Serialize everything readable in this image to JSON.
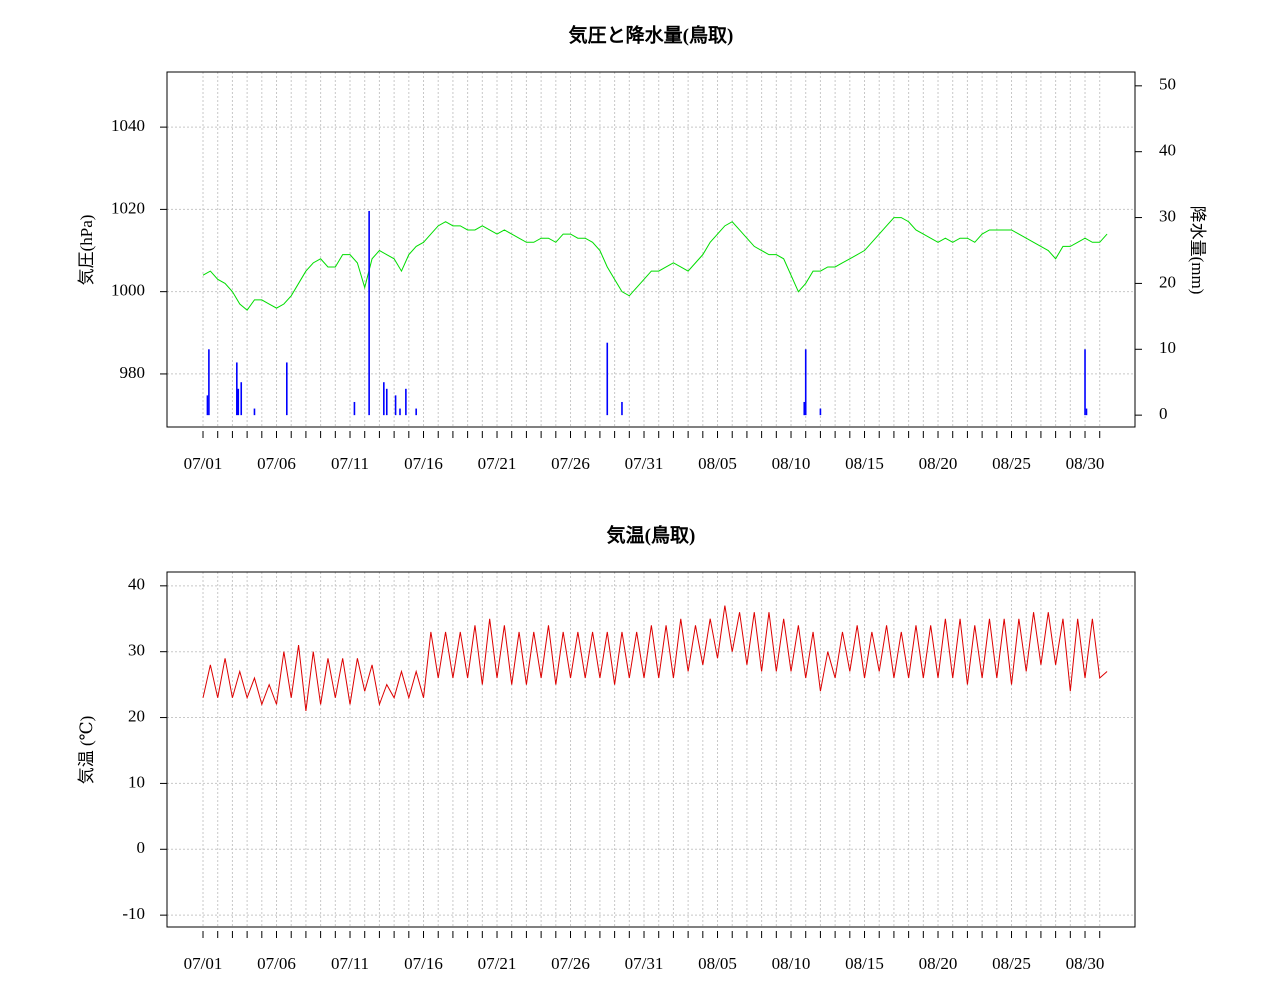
{
  "chart_data": [
    {
      "type": "line",
      "title": "気圧と降水量(鳥取)",
      "ylabel": "気圧(hPa)",
      "y2label": "降水量(mm)",
      "xlim": [
        -2.45,
        63.4
      ],
      "ylim": [
        967.1,
        1053.4
      ],
      "y2lim": [
        -1.8,
        52.1
      ],
      "grid": true,
      "yticks": [
        980,
        1000,
        1020,
        1040
      ],
      "y2ticks": [
        0,
        10,
        20,
        30,
        40,
        50
      ],
      "xticks": [
        {
          "value": 0,
          "label": "07/01"
        },
        {
          "value": 1,
          "label": null
        },
        {
          "value": 2,
          "label": null
        },
        {
          "value": 3,
          "label": null
        },
        {
          "value": 4,
          "label": null
        },
        {
          "value": 5,
          "label": "07/06"
        },
        {
          "value": 6,
          "label": null
        },
        {
          "value": 7,
          "label": null
        },
        {
          "value": 8,
          "label": null
        },
        {
          "value": 9,
          "label": null
        },
        {
          "value": 10,
          "label": "07/11"
        },
        {
          "value": 11,
          "label": null
        },
        {
          "value": 12,
          "label": null
        },
        {
          "value": 13,
          "label": null
        },
        {
          "value": 14,
          "label": null
        },
        {
          "value": 15,
          "label": "07/16"
        },
        {
          "value": 16,
          "label": null
        },
        {
          "value": 17,
          "label": null
        },
        {
          "value": 18,
          "label": null
        },
        {
          "value": 19,
          "label": null
        },
        {
          "value": 20,
          "label": "07/21"
        },
        {
          "value": 21,
          "label": null
        },
        {
          "value": 22,
          "label": null
        },
        {
          "value": 23,
          "label": null
        },
        {
          "value": 24,
          "label": null
        },
        {
          "value": 25,
          "label": "07/26"
        },
        {
          "value": 26,
          "label": null
        },
        {
          "value": 27,
          "label": null
        },
        {
          "value": 28,
          "label": null
        },
        {
          "value": 29,
          "label": null
        },
        {
          "value": 30,
          "label": "07/31"
        },
        {
          "value": 31,
          "label": null
        },
        {
          "value": 32,
          "label": null
        },
        {
          "value": 33,
          "label": null
        },
        {
          "value": 34,
          "label": null
        },
        {
          "value": 35,
          "label": "08/05"
        },
        {
          "value": 36,
          "label": null
        },
        {
          "value": 37,
          "label": null
        },
        {
          "value": 38,
          "label": null
        },
        {
          "value": 39,
          "label": null
        },
        {
          "value": 40,
          "label": "08/10"
        },
        {
          "value": 41,
          "label": null
        },
        {
          "value": 42,
          "label": null
        },
        {
          "value": 43,
          "label": null
        },
        {
          "value": 44,
          "label": null
        },
        {
          "value": 45,
          "label": "08/15"
        },
        {
          "value": 46,
          "label": null
        },
        {
          "value": 47,
          "label": null
        },
        {
          "value": 48,
          "label": null
        },
        {
          "value": 49,
          "label": null
        },
        {
          "value": 50,
          "label": "08/20"
        },
        {
          "value": 51,
          "label": null
        },
        {
          "value": 52,
          "label": null
        },
        {
          "value": 53,
          "label": null
        },
        {
          "value": 54,
          "label": null
        },
        {
          "value": 55,
          "label": "08/25"
        },
        {
          "value": 56,
          "label": null
        },
        {
          "value": 57,
          "label": null
        },
        {
          "value": 58,
          "label": null
        },
        {
          "value": 59,
          "label": null
        },
        {
          "value": 60,
          "label": "08/30"
        },
        {
          "value": 61,
          "label": null
        }
      ],
      "series": [
        {
          "color": "#00dd00",
          "axis": "y",
          "x": [
            0,
            0.5,
            1,
            1.5,
            2,
            2.5,
            3,
            3.5,
            4,
            4.5,
            5,
            5.5,
            6,
            6.5,
            7,
            7.5,
            8,
            8.5,
            9,
            9.5,
            10,
            10.5,
            11,
            11.5,
            12,
            12.5,
            13,
            13.5,
            14,
            14.5,
            15,
            15.5,
            16,
            16.5,
            17,
            17.5,
            18,
            18.5,
            19,
            19.5,
            20,
            20.5,
            21,
            21.5,
            22,
            22.5,
            23,
            23.5,
            24,
            24.5,
            25,
            25.5,
            26,
            26.5,
            27,
            27.5,
            28,
            28.5,
            29,
            29.5,
            30,
            30.5,
            31,
            31.5,
            32,
            32.5,
            33,
            33.5,
            34,
            34.5,
            35,
            35.5,
            36,
            36.5,
            37,
            37.5,
            38,
            38.5,
            39,
            39.5,
            40,
            40.5,
            41,
            41.5,
            42,
            42.5,
            43,
            43.5,
            44,
            44.5,
            45,
            45.5,
            46,
            46.5,
            47,
            47.5,
            48,
            48.5,
            49,
            49.5,
            50,
            50.5,
            51,
            51.5,
            52,
            52.5,
            53,
            53.5,
            54,
            54.5,
            55,
            55.5,
            56,
            56.5,
            57,
            57.5,
            58,
            58.5,
            59,
            59.5,
            60,
            60.5,
            61,
            61.5
          ],
          "values": [
            1004,
            1005,
            1003,
            1002,
            1000,
            997,
            995.5,
            998,
            998,
            997,
            996,
            997,
            999,
            1002,
            1005,
            1007,
            1008,
            1006,
            1006,
            1009,
            1009,
            1007,
            1001,
            1008,
            1010,
            1009,
            1008,
            1005,
            1009,
            1011,
            1012,
            1014,
            1016,
            1017,
            1016,
            1016,
            1015,
            1015,
            1016,
            1015,
            1014,
            1015,
            1014,
            1013,
            1012,
            1012,
            1013,
            1013,
            1012,
            1014,
            1014,
            1013,
            1013,
            1012,
            1010,
            1006,
            1003,
            1000,
            999,
            1001,
            1003,
            1005,
            1005,
            1006,
            1007,
            1006,
            1005,
            1007,
            1009,
            1012,
            1014,
            1016,
            1017,
            1015,
            1013,
            1011,
            1010,
            1009,
            1009,
            1008,
            1004,
            1000,
            1002,
            1005,
            1005,
            1006,
            1006,
            1007,
            1008,
            1009,
            1010,
            1012,
            1014,
            1016,
            1018,
            1018,
            1017,
            1015,
            1014,
            1013,
            1012,
            1013,
            1012,
            1013,
            1013,
            1012,
            1014,
            1015,
            1015,
            1015,
            1015,
            1014,
            1013,
            1012,
            1011,
            1010,
            1008,
            1011,
            1011,
            1012,
            1013,
            1012,
            1012,
            1014
          ]
        },
        {
          "color": "#0000ff",
          "axis": "y2",
          "type": "bar",
          "x": [
            0.3,
            0.4,
            2.3,
            2.4,
            2.6,
            3.5,
            5.7,
            10.3,
            11.3,
            12.3,
            12.5,
            13.1,
            13.4,
            13.8,
            14.5,
            27.5,
            28.5,
            40.9,
            41,
            42,
            60,
            60.1
          ],
          "values": [
            3,
            10,
            8,
            4,
            5,
            1,
            8,
            2,
            31,
            5,
            4,
            3,
            1,
            4,
            1,
            11,
            2,
            2,
            10,
            1,
            10,
            1
          ]
        }
      ]
    },
    {
      "type": "line",
      "title": "気温(鳥取)",
      "ylabel": "気温 (℃)",
      "xlim": [
        -2.45,
        63.4
      ],
      "ylim": [
        -11.8,
        42.1
      ],
      "grid": true,
      "yticks": [
        -10,
        0,
        10,
        20,
        30,
        40
      ],
      "xticks": [
        {
          "value": 0,
          "label": "07/01"
        },
        {
          "value": 1,
          "label": null
        },
        {
          "value": 2,
          "label": null
        },
        {
          "value": 3,
          "label": null
        },
        {
          "value": 4,
          "label": null
        },
        {
          "value": 5,
          "label": "07/06"
        },
        {
          "value": 6,
          "label": null
        },
        {
          "value": 7,
          "label": null
        },
        {
          "value": 8,
          "label": null
        },
        {
          "value": 9,
          "label": null
        },
        {
          "value": 10,
          "label": "07/11"
        },
        {
          "value": 11,
          "label": null
        },
        {
          "value": 12,
          "label": null
        },
        {
          "value": 13,
          "label": null
        },
        {
          "value": 14,
          "label": null
        },
        {
          "value": 15,
          "label": "07/16"
        },
        {
          "value": 16,
          "label": null
        },
        {
          "value": 17,
          "label": null
        },
        {
          "value": 18,
          "label": null
        },
        {
          "value": 19,
          "label": null
        },
        {
          "value": 20,
          "label": "07/21"
        },
        {
          "value": 21,
          "label": null
        },
        {
          "value": 22,
          "label": null
        },
        {
          "value": 23,
          "label": null
        },
        {
          "value": 24,
          "label": null
        },
        {
          "value": 25,
          "label": "07/26"
        },
        {
          "value": 26,
          "label": null
        },
        {
          "value": 27,
          "label": null
        },
        {
          "value": 28,
          "label": null
        },
        {
          "value": 29,
          "label": null
        },
        {
          "value": 30,
          "label": "07/31"
        },
        {
          "value": 31,
          "label": null
        },
        {
          "value": 32,
          "label": null
        },
        {
          "value": 33,
          "label": null
        },
        {
          "value": 34,
          "label": null
        },
        {
          "value": 35,
          "label": "08/05"
        },
        {
          "value": 36,
          "label": null
        },
        {
          "value": 37,
          "label": null
        },
        {
          "value": 38,
          "label": null
        },
        {
          "value": 39,
          "label": null
        },
        {
          "value": 40,
          "label": "08/10"
        },
        {
          "value": 41,
          "label": null
        },
        {
          "value": 42,
          "label": null
        },
        {
          "value": 43,
          "label": null
        },
        {
          "value": 44,
          "label": null
        },
        {
          "value": 45,
          "label": "08/15"
        },
        {
          "value": 46,
          "label": null
        },
        {
          "value": 47,
          "label": null
        },
        {
          "value": 48,
          "label": null
        },
        {
          "value": 49,
          "label": null
        },
        {
          "value": 50,
          "label": "08/20"
        },
        {
          "value": 51,
          "label": null
        },
        {
          "value": 52,
          "label": null
        },
        {
          "value": 53,
          "label": null
        },
        {
          "value": 54,
          "label": null
        },
        {
          "value": 55,
          "label": "08/25"
        },
        {
          "value": 56,
          "label": null
        },
        {
          "value": 57,
          "label": null
        },
        {
          "value": 58,
          "label": null
        },
        {
          "value": 59,
          "label": null
        },
        {
          "value": 60,
          "label": "08/30"
        },
        {
          "value": 61,
          "label": null
        }
      ],
      "series": [
        {
          "color": "#dd0000",
          "axis": "y",
          "x": [
            0,
            0.5,
            1,
            1.5,
            2,
            2.5,
            3,
            3.5,
            4,
            4.5,
            5,
            5.5,
            6,
            6.5,
            7,
            7.5,
            8,
            8.5,
            9,
            9.5,
            10,
            10.5,
            11,
            11.5,
            12,
            12.5,
            13,
            13.5,
            14,
            14.5,
            15,
            15.5,
            16,
            16.5,
            17,
            17.5,
            18,
            18.5,
            19,
            19.5,
            20,
            20.5,
            21,
            21.5,
            22,
            22.5,
            23,
            23.5,
            24,
            24.5,
            25,
            25.5,
            26,
            26.5,
            27,
            27.5,
            28,
            28.5,
            29,
            29.5,
            30,
            30.5,
            31,
            31.5,
            32,
            32.5,
            33,
            33.5,
            34,
            34.5,
            35,
            35.5,
            36,
            36.5,
            37,
            37.5,
            38,
            38.5,
            39,
            39.5,
            40,
            40.5,
            41,
            41.5,
            42,
            42.5,
            43,
            43.5,
            44,
            44.5,
            45,
            45.5,
            46,
            46.5,
            47,
            47.5,
            48,
            48.5,
            49,
            49.5,
            50,
            50.5,
            51,
            51.5,
            52,
            52.5,
            53,
            53.5,
            54,
            54.5,
            55,
            55.5,
            56,
            56.5,
            57,
            57.5,
            58,
            58.5,
            59,
            59.5,
            60,
            60.5,
            61,
            61.5
          ],
          "values": [
            23,
            28,
            23,
            29,
            23,
            27,
            23,
            26,
            22,
            25,
            22,
            30,
            23,
            31,
            21,
            30,
            22,
            29,
            23,
            29,
            22,
            29,
            24,
            28,
            22,
            25,
            23,
            27,
            23,
            27,
            23,
            33,
            26,
            33,
            26,
            33,
            26,
            34,
            25,
            35,
            26,
            34,
            25,
            33,
            25,
            33,
            26,
            34,
            25,
            33,
            26,
            33,
            26,
            33,
            26,
            33,
            25,
            33,
            26,
            33,
            26,
            34,
            26,
            34,
            26,
            35,
            27,
            34,
            28,
            35,
            29,
            37,
            30,
            36,
            28,
            36,
            27,
            36,
            27,
            35,
            27,
            34,
            26,
            33,
            24,
            30,
            26,
            33,
            27,
            34,
            26,
            33,
            27,
            34,
            26,
            33,
            26,
            34,
            26,
            34,
            26,
            35,
            26,
            35,
            25,
            34,
            26,
            35,
            26,
            35,
            25,
            35,
            27,
            36,
            28,
            36,
            28,
            35,
            24,
            35,
            26,
            35,
            26,
            27
          ]
        }
      ]
    }
  ]
}
